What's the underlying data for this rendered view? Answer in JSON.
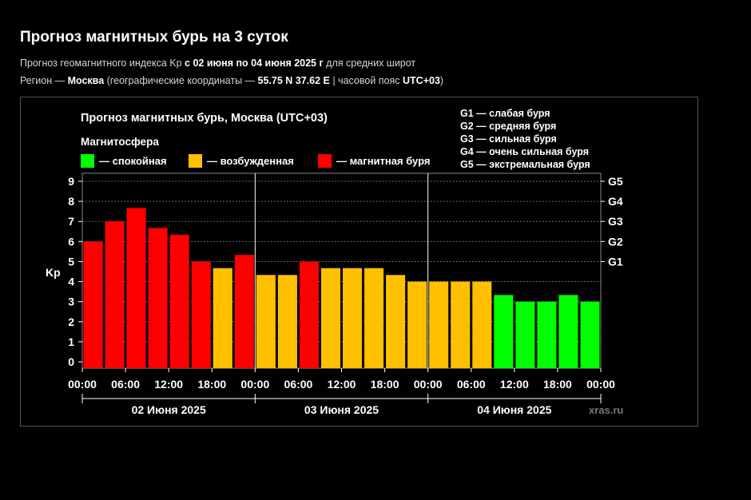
{
  "header": {
    "title": "Прогноз магнитных бурь на 3 суток",
    "line1_prefix": "Прогноз геомагнитного индекса Kp ",
    "line1_bold": "с 02 июня по 04 июня 2025 г",
    "line1_suffix": " для средних широт",
    "line2_prefix": "Регион — ",
    "line2_city": "Москва",
    "line2_mid": " (географические координаты — ",
    "line2_coords": "55.75 N 37.62 E",
    "line2_sep": " | часовой пояс ",
    "line2_tz": "UTC+03",
    "line2_end": ")"
  },
  "chart_data": {
    "type": "bar",
    "title": "Прогноз магнитных бурь, Москва (UTC+03)",
    "legend_title": "Магнитосфера",
    "legend": [
      {
        "label": "— спокойная",
        "color": "#00ff00"
      },
      {
        "label": "— возбужденная",
        "color": "#ffc000"
      },
      {
        "label": "— магнитная буря",
        "color": "#ff0000"
      }
    ],
    "g_scale": [
      "G1 — слабая буря",
      "G2 — средняя буря",
      "G3 — сильная буря",
      "G4 — очень сильная буря",
      "G5 — экстремальная буря"
    ],
    "ylabel": "Kp",
    "ylim": [
      0,
      9
    ],
    "y_ticks": [
      "0",
      "1",
      "2",
      "3",
      "4",
      "5",
      "6",
      "7",
      "8",
      "9"
    ],
    "right_ticks": [
      {
        "label": "G1",
        "y": 5
      },
      {
        "label": "G2",
        "y": 6
      },
      {
        "label": "G3",
        "y": 7
      },
      {
        "label": "G4",
        "y": 8
      },
      {
        "label": "G5",
        "y": 9
      }
    ],
    "x_ticks": [
      "00:00",
      "06:00",
      "12:00",
      "18:00",
      "00:00",
      "06:00",
      "12:00",
      "18:00",
      "00:00",
      "06:00",
      "12:00",
      "18:00",
      "00:00"
    ],
    "days": [
      "02 Июня 2025",
      "03 Июня 2025",
      "04 Июня 2025"
    ],
    "values": [
      6.0,
      7.0,
      7.67,
      6.67,
      6.33,
      5.0,
      4.67,
      5.33,
      4.33,
      4.33,
      5.0,
      4.67,
      4.67,
      4.67,
      4.33,
      4.0,
      4.0,
      4.0,
      4.0,
      3.33,
      3.0,
      3.0,
      3.33,
      3.0
    ],
    "bar_colors": [
      "#ff0000",
      "#ff0000",
      "#ff0000",
      "#ff0000",
      "#ff0000",
      "#ff0000",
      "#ffc000",
      "#ff0000",
      "#ffc000",
      "#ffc000",
      "#ff0000",
      "#ffc000",
      "#ffc000",
      "#ffc000",
      "#ffc000",
      "#ffc000",
      "#ffc000",
      "#ffc000",
      "#ffc000",
      "#00ff00",
      "#00ff00",
      "#00ff00",
      "#00ff00",
      "#00ff00"
    ],
    "grid": true,
    "watermark": "xras.ru"
  }
}
